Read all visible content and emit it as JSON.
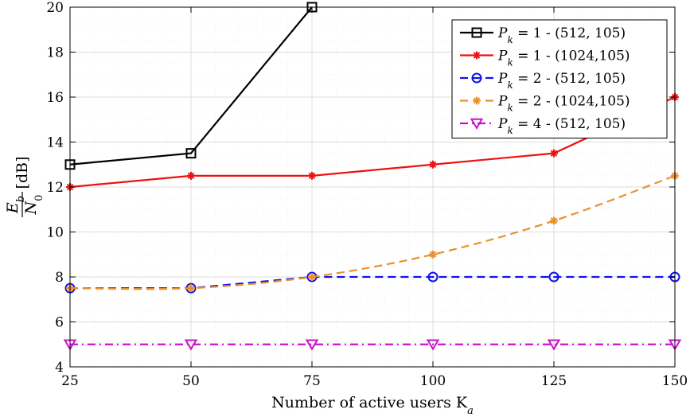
{
  "chart_data": {
    "type": "line",
    "xlabel": "Number of active users K",
    "xlabel_sub": "a",
    "ylabel_num": "E",
    "ylabel_num_sub": "b",
    "ylabel_den": "N",
    "ylabel_den_sub": "0",
    "ylabel_unit": "[dB]",
    "xlim": [
      25,
      150
    ],
    "ylim": [
      4,
      20
    ],
    "xticks": [
      25,
      50,
      75,
      100,
      125,
      150
    ],
    "yticks": [
      4,
      6,
      8,
      10,
      12,
      14,
      16,
      18,
      20
    ],
    "grid": true,
    "minor_grid": true,
    "legend_position": "top-right",
    "series": [
      {
        "name": "P_k = 1 - (512, 105)",
        "legend_pk": "1",
        "legend_params": "(512,  105)",
        "color": "#000000",
        "dash": "solid",
        "marker": "square",
        "x": [
          25,
          50,
          75
        ],
        "y": [
          13,
          13.5,
          20
        ]
      },
      {
        "name": "P_k = 1 - (1024,105)",
        "legend_pk": "1",
        "legend_params": "(1024,105)",
        "color": "#ee1111",
        "dash": "solid",
        "marker": "asterisk",
        "x": [
          25,
          50,
          75,
          100,
          125,
          150
        ],
        "y": [
          12,
          12.5,
          12.5,
          13,
          13.5,
          16
        ]
      },
      {
        "name": "P_k = 2 - (512, 105)",
        "legend_pk": "2",
        "legend_params": "(512,  105)",
        "color": "#1111ee",
        "dash": "dashed",
        "marker": "circle",
        "x": [
          25,
          50,
          75,
          100,
          125,
          150
        ],
        "y": [
          7.5,
          7.5,
          8,
          8,
          8,
          8
        ]
      },
      {
        "name": "P_k = 2 - (1024,105)",
        "legend_pk": "2",
        "legend_params": "(1024,105)",
        "color": "#e8922e",
        "dash": "dashed",
        "marker": "asterisk",
        "x": [
          25,
          50,
          75,
          100,
          125,
          150
        ],
        "y": [
          7.5,
          7.5,
          8,
          9,
          10.5,
          12.5
        ]
      },
      {
        "name": "P_k = 4 - (512, 105)",
        "legend_pk": "4",
        "legend_params": "(512,  105)",
        "color": "#cc11cc",
        "dash": "dashdot",
        "marker": "triangle-down",
        "x": [
          25,
          50,
          75,
          100,
          125,
          150
        ],
        "y": [
          5,
          5,
          5,
          5,
          5,
          5
        ]
      }
    ]
  }
}
